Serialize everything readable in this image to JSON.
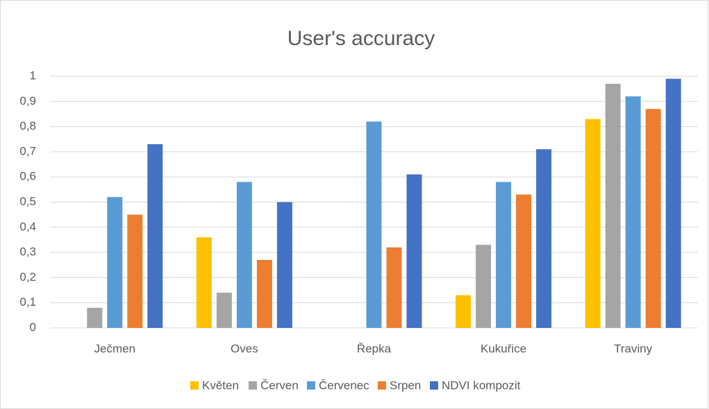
{
  "chart_data": {
    "type": "bar",
    "title": "User's accuracy",
    "categories": [
      "Ječmen",
      "Oves",
      "Řepka",
      "Kukuřice",
      "Traviny"
    ],
    "series": [
      {
        "name": "Květen",
        "color": "#ffc000",
        "values": [
          0,
          0.36,
          0,
          0.13,
          0.83
        ]
      },
      {
        "name": "Červen",
        "color": "#a5a5a5",
        "values": [
          0.08,
          0.14,
          0,
          0.33,
          0.97
        ]
      },
      {
        "name": "Červenec",
        "color": "#5b9bd5",
        "values": [
          0.52,
          0.58,
          0.82,
          0.58,
          0.92
        ]
      },
      {
        "name": "Srpen",
        "color": "#ed7d31",
        "values": [
          0.45,
          0.27,
          0.32,
          0.53,
          0.87
        ]
      },
      {
        "name": "NDVI kompozit",
        "color": "#4472c4",
        "values": [
          0.73,
          0.5,
          0.61,
          0.71,
          0.99
        ]
      }
    ],
    "ylim": [
      0,
      1
    ],
    "yticks": [
      0,
      {
        "value": 0.1,
        "label": "0,1"
      },
      {
        "value": 0.2,
        "label": "0,2"
      },
      {
        "value": 0.3,
        "label": "0,3"
      },
      {
        "value": 0.4,
        "label": "0,4"
      },
      {
        "value": 0.5,
        "label": "0,5"
      },
      {
        "value": 0.6,
        "label": "0,6"
      },
      {
        "value": 0.7,
        "label": "0,7"
      },
      {
        "value": 0.8,
        "label": "0,8"
      },
      {
        "value": 0.9,
        "label": "0,9"
      },
      1
    ],
    "grid": true,
    "legend": "bottom"
  }
}
